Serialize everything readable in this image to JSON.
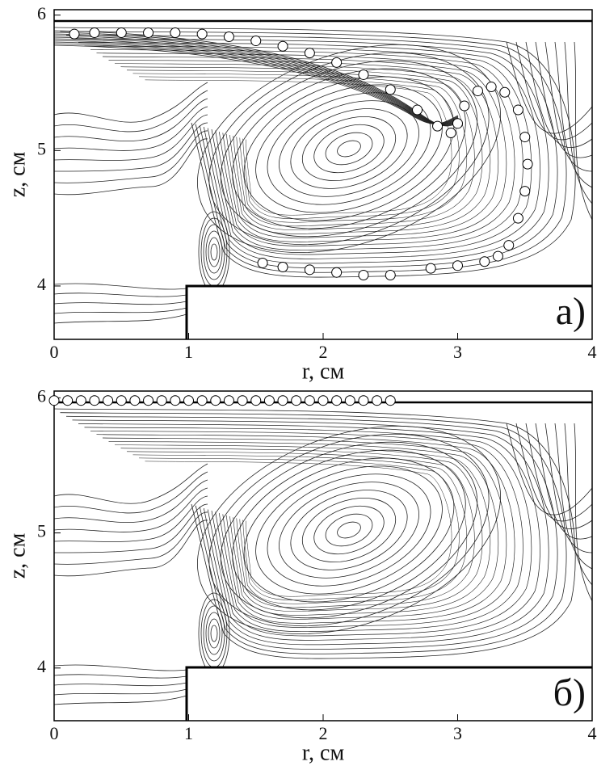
{
  "chart_data": [
    {
      "type": "contour",
      "xlabel": "r, см",
      "ylabel": "z, см",
      "annotation": "а)",
      "xlim": [
        0,
        4
      ],
      "ylim": [
        3.606,
        6.04
      ],
      "xticks": [
        0,
        1,
        2,
        3,
        4
      ],
      "yticks": [
        4,
        5,
        6
      ],
      "series": [
        {
          "color": "#ffffff",
          "x": [
            0.15,
            0.3,
            0.5,
            0.7,
            0.9,
            1.1,
            1.3,
            1.5,
            1.7,
            1.9,
            2.1,
            2.3,
            2.5,
            2.7,
            2.85,
            2.95,
            3.0,
            3.05,
            3.15,
            3.25,
            3.35,
            3.45,
            3.5,
            3.52,
            3.5,
            3.45,
            3.38,
            3.3,
            3.2,
            3.0,
            2.8,
            2.5,
            2.3,
            2.1,
            1.9,
            1.7,
            1.55
          ],
          "y": [
            5.86,
            5.87,
            5.87,
            5.87,
            5.87,
            5.86,
            5.84,
            5.81,
            5.77,
            5.72,
            5.65,
            5.56,
            5.45,
            5.3,
            5.18,
            5.13,
            5.2,
            5.33,
            5.44,
            5.47,
            5.43,
            5.3,
            5.1,
            4.9,
            4.7,
            4.5,
            4.3,
            4.22,
            4.18,
            4.15,
            4.13,
            4.08,
            4.08,
            4.1,
            4.12,
            4.14,
            4.17
          ]
        }
      ]
    },
    {
      "type": "contour",
      "xlabel": "r, см",
      "ylabel": "z, см",
      "annotation": "б)",
      "xlim": [
        0,
        4
      ],
      "ylim": [
        3.61,
        6.05
      ],
      "xticks": [
        0,
        1,
        2,
        3,
        4
      ],
      "yticks": [
        4,
        5,
        6
      ],
      "series": [
        {
          "color": "#ffffff",
          "x": [
            0,
            0.1,
            0.2,
            0.3,
            0.4,
            0.5,
            0.6,
            0.7,
            0.8,
            0.9,
            1.0,
            1.1,
            1.2,
            1.3,
            1.4,
            1.5,
            1.6,
            1.7,
            1.8,
            1.9,
            2.0,
            2.1,
            2.2,
            2.3,
            2.4,
            2.5
          ],
          "y": [
            5.98,
            5.98,
            5.98,
            5.98,
            5.98,
            5.98,
            5.98,
            5.98,
            5.98,
            5.98,
            5.98,
            5.98,
            5.98,
            5.98,
            5.98,
            5.98,
            5.98,
            5.98,
            5.98,
            5.98,
            5.98,
            5.98,
            5.98,
            5.98,
            5.98,
            5.98
          ]
        }
      ]
    }
  ]
}
